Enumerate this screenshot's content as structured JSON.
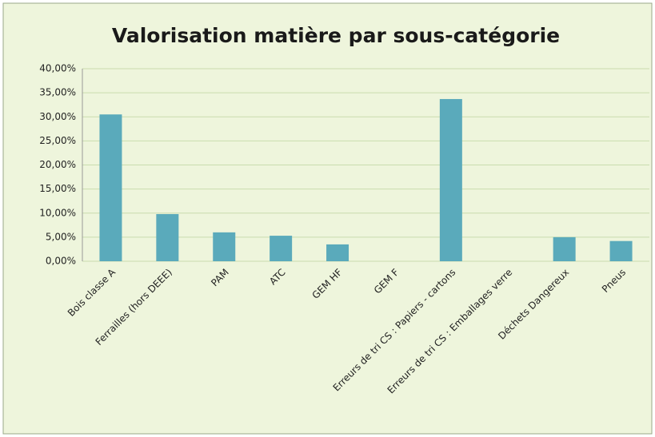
{
  "chart_data": {
    "type": "bar",
    "title": "Valorisation matière par sous-catégorie",
    "categories": [
      "Bois classe A",
      "Ferrailles (hors DEEE)",
      "PAM",
      "ATC",
      "GEM HF",
      "GEM F",
      "Erreurs de tri CS : Papiers - cartons",
      "Erreurs de tri CS : Emballages  verre",
      "Déchets Dangereux",
      "Pneus"
    ],
    "values": [
      30.5,
      9.8,
      6.0,
      5.3,
      3.5,
      0,
      33.7,
      0,
      5.0,
      4.2
    ],
    "color": "#5aaabb",
    "ylim": [
      0,
      40
    ],
    "yticks": [
      {
        "value": 0,
        "label": "0,00%"
      },
      {
        "value": 5,
        "label": "5,00%"
      },
      {
        "value": 10,
        "label": "10,00%"
      },
      {
        "value": 15,
        "label": "15,00%"
      },
      {
        "value": 20,
        "label": "20,00%"
      },
      {
        "value": 25,
        "label": "25,00%"
      },
      {
        "value": 30,
        "label": "30,00%"
      },
      {
        "value": 35,
        "label": "35,00%"
      },
      {
        "value": 40,
        "label": "40,00%"
      }
    ],
    "grid": true
  }
}
